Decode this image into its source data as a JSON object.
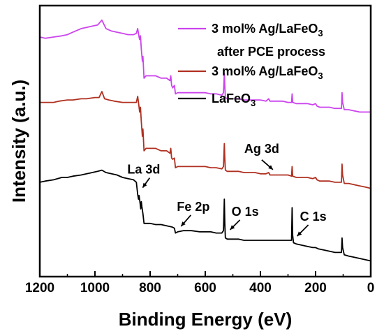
{
  "chart_data": {
    "type": "line",
    "title": "",
    "xlabel": "Binding Energy (eV)",
    "ylabel": "Intensity (a.u.)",
    "xlim": [
      1200,
      0
    ],
    "x_reversed": true,
    "y_ticks_shown": false,
    "xticks": [
      "1200",
      "1000",
      "800",
      "600",
      "400",
      "200",
      "0"
    ],
    "xtick_values": [
      1200,
      1000,
      800,
      600,
      400,
      200,
      0
    ],
    "grid": false,
    "legend_position": "top-right",
    "series": [
      {
        "name": "3 mol% Ag/LaFeO3 after PCE process",
        "label_line1": "3 mol% Ag/LaFeO",
        "label_sub": "3",
        "label_line2": "after PCE process",
        "color": "#cc44ee",
        "points": [
          [
            1200,
            0.87
          ],
          [
            1180,
            0.865
          ],
          [
            1150,
            0.87
          ],
          [
            1120,
            0.875
          ],
          [
            1100,
            0.88
          ],
          [
            1080,
            0.89
          ],
          [
            1050,
            0.905
          ],
          [
            1030,
            0.91
          ],
          [
            1010,
            0.915
          ],
          [
            990,
            0.92
          ],
          [
            975,
            0.94
          ],
          [
            960,
            0.905
          ],
          [
            940,
            0.895
          ],
          [
            920,
            0.89
          ],
          [
            900,
            0.885
          ],
          [
            880,
            0.88
          ],
          [
            860,
            0.88
          ],
          [
            850,
            0.885
          ],
          [
            845,
            0.905
          ],
          [
            840,
            0.87
          ],
          [
            838,
            0.86
          ],
          [
            835,
            0.875
          ],
          [
            832,
            0.82
          ],
          [
            828,
            0.77
          ],
          [
            826,
            0.79
          ],
          [
            822,
            0.7
          ],
          [
            815,
            0.71
          ],
          [
            800,
            0.71
          ],
          [
            780,
            0.71
          ],
          [
            760,
            0.7
          ],
          [
            740,
            0.7
          ],
          [
            728,
            0.69
          ],
          [
            725,
            0.71
          ],
          [
            722,
            0.67
          ],
          [
            718,
            0.66
          ],
          [
            712,
            0.67
          ],
          [
            708,
            0.635
          ],
          [
            700,
            0.64
          ],
          [
            680,
            0.64
          ],
          [
            650,
            0.64
          ],
          [
            620,
            0.64
          ],
          [
            600,
            0.64
          ],
          [
            580,
            0.635
          ],
          [
            560,
            0.635
          ],
          [
            540,
            0.63
          ],
          [
            534,
            0.64
          ],
          [
            531,
            0.72
          ],
          [
            529,
            0.67
          ],
          [
            527,
            0.62
          ],
          [
            520,
            0.615
          ],
          [
            500,
            0.615
          ],
          [
            480,
            0.615
          ],
          [
            460,
            0.61
          ],
          [
            440,
            0.61
          ],
          [
            420,
            0.61
          ],
          [
            400,
            0.61
          ],
          [
            380,
            0.605
          ],
          [
            370,
            0.615
          ],
          [
            365,
            0.605
          ],
          [
            340,
            0.605
          ],
          [
            320,
            0.605
          ],
          [
            300,
            0.6
          ],
          [
            287,
            0.6
          ],
          [
            285,
            0.635
          ],
          [
            283,
            0.6
          ],
          [
            270,
            0.595
          ],
          [
            250,
            0.595
          ],
          [
            230,
            0.595
          ],
          [
            210,
            0.59
          ],
          [
            200,
            0.595
          ],
          [
            195,
            0.585
          ],
          [
            185,
            0.58
          ],
          [
            170,
            0.58
          ],
          [
            150,
            0.58
          ],
          [
            130,
            0.575
          ],
          [
            115,
            0.575
          ],
          [
            106,
            0.575
          ],
          [
            104,
            0.64
          ],
          [
            102,
            0.6
          ],
          [
            96,
            0.57
          ],
          [
            80,
            0.57
          ],
          [
            60,
            0.565
          ],
          [
            40,
            0.56
          ],
          [
            20,
            0.56
          ],
          [
            0,
            0.56
          ]
        ]
      },
      {
        "name": "3 mol% Ag/LaFeO3",
        "label_line1": "3 mol% Ag/LaFeO",
        "label_sub": "3",
        "color": "#b03020",
        "points": [
          [
            1200,
            0.6
          ],
          [
            1180,
            0.6
          ],
          [
            1150,
            0.6
          ],
          [
            1130,
            0.605
          ],
          [
            1100,
            0.61
          ],
          [
            1080,
            0.61
          ],
          [
            1050,
            0.615
          ],
          [
            1030,
            0.615
          ],
          [
            1000,
            0.62
          ],
          [
            985,
            0.62
          ],
          [
            975,
            0.645
          ],
          [
            965,
            0.615
          ],
          [
            950,
            0.61
          ],
          [
            930,
            0.605
          ],
          [
            900,
            0.6
          ],
          [
            880,
            0.6
          ],
          [
            860,
            0.6
          ],
          [
            850,
            0.6
          ],
          [
            845,
            0.625
          ],
          [
            840,
            0.58
          ],
          [
            838,
            0.56
          ],
          [
            835,
            0.58
          ],
          [
            832,
            0.52
          ],
          [
            828,
            0.46
          ],
          [
            826,
            0.49
          ],
          [
            822,
            0.4
          ],
          [
            815,
            0.41
          ],
          [
            800,
            0.41
          ],
          [
            780,
            0.41
          ],
          [
            760,
            0.4
          ],
          [
            740,
            0.4
          ],
          [
            728,
            0.39
          ],
          [
            725,
            0.41
          ],
          [
            722,
            0.37
          ],
          [
            718,
            0.365
          ],
          [
            712,
            0.37
          ],
          [
            708,
            0.33
          ],
          [
            700,
            0.335
          ],
          [
            680,
            0.335
          ],
          [
            650,
            0.335
          ],
          [
            620,
            0.335
          ],
          [
            600,
            0.335
          ],
          [
            580,
            0.33
          ],
          [
            560,
            0.33
          ],
          [
            540,
            0.325
          ],
          [
            534,
            0.335
          ],
          [
            531,
            0.43
          ],
          [
            529,
            0.37
          ],
          [
            527,
            0.32
          ],
          [
            520,
            0.315
          ],
          [
            500,
            0.315
          ],
          [
            480,
            0.315
          ],
          [
            460,
            0.31
          ],
          [
            440,
            0.31
          ],
          [
            420,
            0.31
          ],
          [
            400,
            0.305
          ],
          [
            380,
            0.305
          ],
          [
            370,
            0.31
          ],
          [
            365,
            0.3
          ],
          [
            340,
            0.3
          ],
          [
            320,
            0.3
          ],
          [
            300,
            0.3
          ],
          [
            287,
            0.295
          ],
          [
            285,
            0.335
          ],
          [
            283,
            0.295
          ],
          [
            270,
            0.29
          ],
          [
            250,
            0.29
          ],
          [
            230,
            0.29
          ],
          [
            210,
            0.285
          ],
          [
            200,
            0.29
          ],
          [
            195,
            0.28
          ],
          [
            185,
            0.275
          ],
          [
            170,
            0.275
          ],
          [
            150,
            0.275
          ],
          [
            130,
            0.27
          ],
          [
            115,
            0.27
          ],
          [
            106,
            0.27
          ],
          [
            104,
            0.345
          ],
          [
            102,
            0.3
          ],
          [
            96,
            0.265
          ],
          [
            80,
            0.265
          ],
          [
            60,
            0.26
          ],
          [
            40,
            0.255
          ],
          [
            20,
            0.25
          ],
          [
            0,
            0.245
          ]
        ]
      },
      {
        "name": "LaFeO3",
        "label_line1": "LaFeO",
        "label_sub": "3",
        "color": "#000000",
        "points": [
          [
            1200,
            0.27
          ],
          [
            1180,
            0.275
          ],
          [
            1150,
            0.28
          ],
          [
            1120,
            0.29
          ],
          [
            1100,
            0.29
          ],
          [
            1080,
            0.295
          ],
          [
            1050,
            0.3
          ],
          [
            1030,
            0.305
          ],
          [
            1010,
            0.31
          ],
          [
            990,
            0.315
          ],
          [
            975,
            0.32
          ],
          [
            960,
            0.31
          ],
          [
            940,
            0.305
          ],
          [
            920,
            0.3
          ],
          [
            900,
            0.29
          ],
          [
            880,
            0.285
          ],
          [
            860,
            0.28
          ],
          [
            850,
            0.27
          ],
          [
            845,
            0.22
          ],
          [
            842,
            0.2
          ],
          [
            840,
            0.215
          ],
          [
            836,
            0.18
          ],
          [
            834,
            0.16
          ],
          [
            832,
            0.19
          ],
          [
            830,
            0.17
          ],
          [
            826,
            0.14
          ],
          [
            822,
            0.1
          ],
          [
            815,
            0.1
          ],
          [
            800,
            0.1
          ],
          [
            780,
            0.095
          ],
          [
            760,
            0.095
          ],
          [
            740,
            0.09
          ],
          [
            720,
            0.085
          ],
          [
            712,
            0.08
          ],
          [
            708,
            0.06
          ],
          [
            700,
            0.065
          ],
          [
            680,
            0.07
          ],
          [
            650,
            0.07
          ],
          [
            620,
            0.065
          ],
          [
            600,
            0.065
          ],
          [
            580,
            0.065
          ],
          [
            560,
            0.06
          ],
          [
            540,
            0.06
          ],
          [
            534,
            0.07
          ],
          [
            531,
            0.2
          ],
          [
            529,
            0.1
          ],
          [
            527,
            0.04
          ],
          [
            520,
            0.035
          ],
          [
            500,
            0.035
          ],
          [
            480,
            0.035
          ],
          [
            460,
            0.03
          ],
          [
            440,
            0.03
          ],
          [
            420,
            0.03
          ],
          [
            400,
            0.03
          ],
          [
            380,
            0.03
          ],
          [
            360,
            0.03
          ],
          [
            340,
            0.03
          ],
          [
            320,
            0.03
          ],
          [
            300,
            0.03
          ],
          [
            287,
            0.03
          ],
          [
            285,
            0.165
          ],
          [
            283,
            0.05
          ],
          [
            280,
            0.02
          ],
          [
            270,
            0.015
          ],
          [
            250,
            0.01
          ],
          [
            230,
            0.005
          ],
          [
            210,
            0.0
          ],
          [
            200,
            0.0
          ],
          [
            190,
            -0.005
          ],
          [
            170,
            -0.01
          ],
          [
            150,
            -0.015
          ],
          [
            130,
            -0.02
          ],
          [
            115,
            -0.02
          ],
          [
            106,
            -0.02
          ],
          [
            104,
            0.04
          ],
          [
            102,
            0.0
          ],
          [
            96,
            -0.03
          ],
          [
            80,
            -0.035
          ],
          [
            60,
            -0.04
          ],
          [
            40,
            -0.045
          ],
          [
            20,
            -0.05
          ],
          [
            0,
            -0.055
          ]
        ]
      }
    ],
    "annotations": [
      {
        "text": "La 3d",
        "x": 832,
        "y": 0.19,
        "dir": "up-left"
      },
      {
        "text": "Fe 2p",
        "x": 708,
        "y": 0.065,
        "dir": "up-right"
      },
      {
        "text": "O 1s",
        "x": 525,
        "y": 0.045,
        "dir": "up-right"
      },
      {
        "text": "C 1s",
        "x": 282,
        "y": 0.03,
        "dir": "up-right"
      },
      {
        "text": "Ag 3d",
        "x": 370,
        "y": 0.305,
        "dir": "down-right"
      }
    ]
  }
}
